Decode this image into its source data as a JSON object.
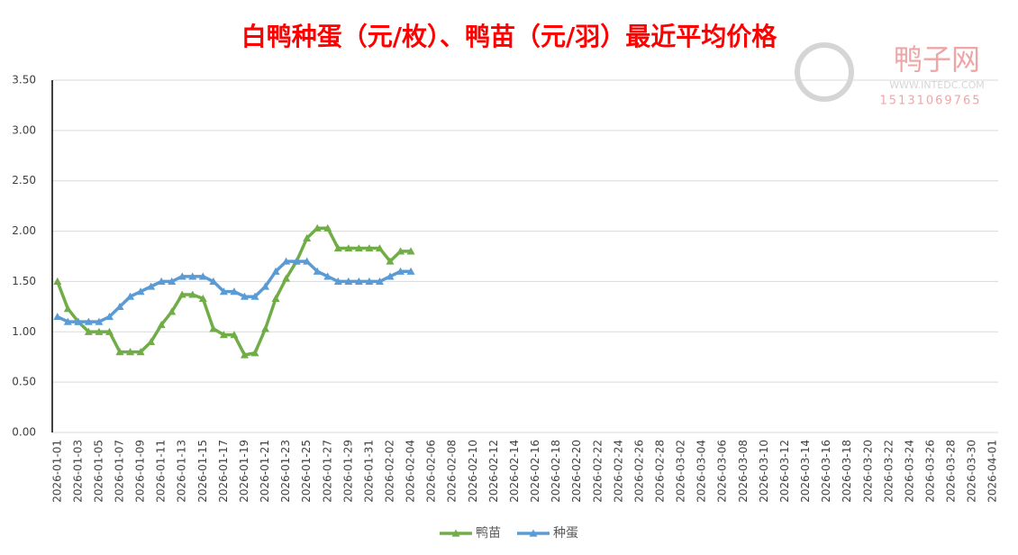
{
  "chart_data": {
    "type": "line",
    "title": "白鸭种蛋（元/枚）、鸭苗（元/羽）最近平均价格",
    "watermark": {
      "brand": "鸭子网",
      "site": "WWW.INTEDC.COM",
      "phone": "15131069765"
    },
    "categories": [
      "2026-01-01",
      null,
      "2026-01-03",
      null,
      "2026-01-05",
      null,
      "2026-01-07",
      null,
      "2026-01-09",
      null,
      "2026-01-11",
      null,
      "2026-01-13",
      null,
      "2026-01-15",
      null,
      "2026-01-17",
      null,
      "2026-01-19",
      null,
      "2026-01-21",
      null,
      "2026-01-23",
      null,
      "2026-01-25",
      null,
      "2026-01-27",
      null,
      "2026-01-29",
      null,
      "2026-01-31",
      null,
      "2026-02-02",
      null,
      "2026-02-04",
      null,
      "2026-02-06",
      null,
      "2026-02-08",
      null,
      "2026-02-10",
      null,
      "2026-02-12",
      null,
      "2026-02-14",
      null,
      "2026-02-16",
      null,
      "2026-02-18",
      null,
      "2026-02-20",
      null,
      "2026-02-22",
      null,
      "2026-02-24",
      null,
      "2026-02-26",
      null,
      "2026-02-28",
      null,
      "2026-03-02",
      null,
      "2026-03-04",
      null,
      "2026-03-06",
      null,
      "2026-03-08",
      null,
      "2026-03-10",
      null,
      "2026-03-12",
      null,
      "2026-03-14",
      null,
      "2026-03-16",
      null,
      "2026-03-18",
      null,
      "2026-03-20",
      null,
      "2026-03-22",
      null,
      "2026-03-24",
      null,
      "2026-03-26",
      null,
      "2026-03-28",
      null,
      "2026-03-30",
      null,
      "2026-04-01"
    ],
    "series": [
      {
        "name": "鸭苗",
        "color": "#70ad47",
        "values": [
          1.5,
          1.23,
          1.1,
          1.0,
          1.0,
          1.0,
          0.8,
          0.8,
          0.8,
          0.9,
          1.07,
          1.2,
          1.37,
          1.37,
          1.33,
          1.03,
          0.97,
          0.97,
          0.77,
          0.79,
          1.03,
          1.33,
          1.53,
          1.7,
          1.93,
          2.03,
          2.03,
          1.83,
          1.83,
          1.83,
          1.83,
          1.83,
          1.7,
          1.8,
          1.8,
          null,
          null,
          null,
          null,
          null,
          null,
          null,
          null,
          null,
          null,
          null,
          null,
          null,
          null,
          null,
          null,
          null,
          null,
          null,
          null,
          null,
          null,
          null,
          null,
          null,
          null,
          null,
          null,
          null,
          null,
          null,
          null,
          null,
          null,
          null,
          null,
          null,
          null,
          null,
          null,
          null,
          null,
          null,
          null,
          null,
          null,
          null,
          null,
          null,
          null,
          null,
          null,
          null,
          null,
          null,
          null
        ]
      },
      {
        "name": "种蛋",
        "color": "#5b9bd5",
        "values": [
          1.15,
          1.1,
          1.1,
          1.1,
          1.1,
          1.15,
          1.25,
          1.35,
          1.4,
          1.45,
          1.5,
          1.5,
          1.55,
          1.55,
          1.55,
          1.5,
          1.4,
          1.4,
          1.35,
          1.35,
          1.45,
          1.6,
          1.7,
          1.7,
          1.7,
          1.6,
          1.55,
          1.5,
          1.5,
          1.5,
          1.5,
          1.5,
          1.55,
          1.6,
          1.6,
          null,
          null,
          null,
          null,
          null,
          null,
          null,
          null,
          null,
          null,
          null,
          null,
          null,
          null,
          null,
          null,
          null,
          null,
          null,
          null,
          null,
          null,
          null,
          null,
          null,
          null,
          null,
          null,
          null,
          null,
          null,
          null,
          null,
          null,
          null,
          null,
          null,
          null,
          null,
          null,
          null,
          null,
          null,
          null,
          null,
          null,
          null,
          null,
          null,
          null,
          null,
          null,
          null,
          null,
          null,
          null
        ]
      }
    ],
    "ylim": [
      0,
      3.5
    ],
    "yticks": [
      {
        "value": 0,
        "label": "0.00"
      },
      {
        "value": 0.5,
        "label": "0.50"
      },
      {
        "value": 1,
        "label": "1.00"
      },
      {
        "value": 1.5,
        "label": "1.50"
      },
      {
        "value": 2,
        "label": "2.00"
      },
      {
        "value": 2.5,
        "label": "2.50"
      },
      {
        "value": 3,
        "label": "3.00"
      },
      {
        "value": 3.5,
        "label": "3.50"
      }
    ],
    "grid": true,
    "legend": "bottom"
  }
}
